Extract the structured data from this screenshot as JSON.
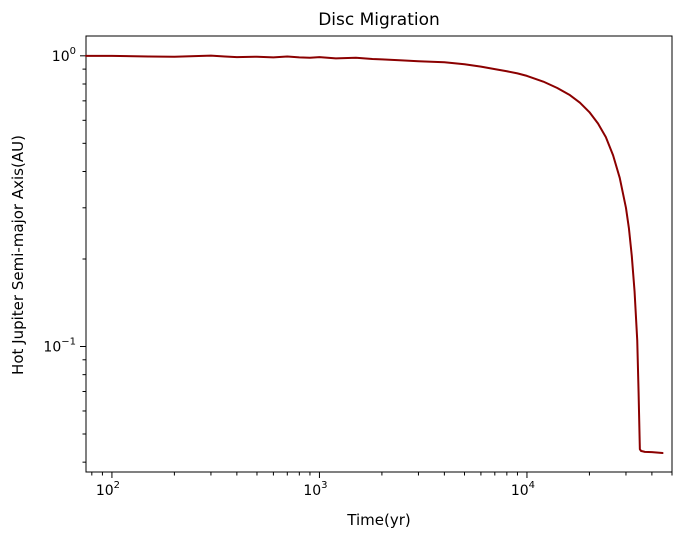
{
  "chart_data": {
    "type": "line",
    "title": "Disc Migration",
    "xlabel": "Time(yr)",
    "ylabel": "Hot Jupiter Semi-major Axis(AU)",
    "xscale": "log",
    "yscale": "log",
    "xlim": [
      75,
      50000
    ],
    "ylim": [
      0.037,
      1.17
    ],
    "grid": false,
    "legend": "none",
    "line_color": "#8b0000",
    "x_ticks": [
      {
        "value": 100,
        "base": "10",
        "exp": "2"
      },
      {
        "value": 1000,
        "base": "10",
        "exp": "3"
      },
      {
        "value": 10000,
        "base": "10",
        "exp": "4"
      }
    ],
    "y_ticks": [
      {
        "value": 1,
        "base": "10",
        "exp": "0"
      },
      {
        "value": 0.1,
        "base": "10",
        "exp": "−1"
      }
    ],
    "series": [
      {
        "x": [
          75,
          100,
          150,
          200,
          250,
          300,
          350,
          400,
          500,
          600,
          700,
          800,
          900,
          1000,
          1200,
          1500,
          1800,
          2000,
          2500,
          3000,
          4000,
          5000,
          6000,
          7000,
          8000,
          9000,
          10000,
          12000,
          14000,
          16000,
          18000,
          20000,
          22000,
          24000,
          26000,
          28000,
          30000,
          31000,
          32000,
          33000,
          34000,
          34500,
          35000,
          35500,
          36000,
          37000,
          40000,
          45000
        ],
        "y": [
          1.0,
          1.0,
          0.995,
          0.993,
          0.998,
          1.002,
          0.995,
          0.99,
          0.993,
          0.988,
          0.995,
          0.988,
          0.985,
          0.99,
          0.98,
          0.985,
          0.975,
          0.972,
          0.965,
          0.958,
          0.95,
          0.935,
          0.918,
          0.9,
          0.885,
          0.87,
          0.853,
          0.815,
          0.775,
          0.735,
          0.69,
          0.64,
          0.585,
          0.525,
          0.455,
          0.38,
          0.3,
          0.255,
          0.205,
          0.155,
          0.105,
          0.07,
          0.0443,
          0.0437,
          0.0436,
          0.0434,
          0.0433,
          0.043
        ]
      }
    ]
  }
}
